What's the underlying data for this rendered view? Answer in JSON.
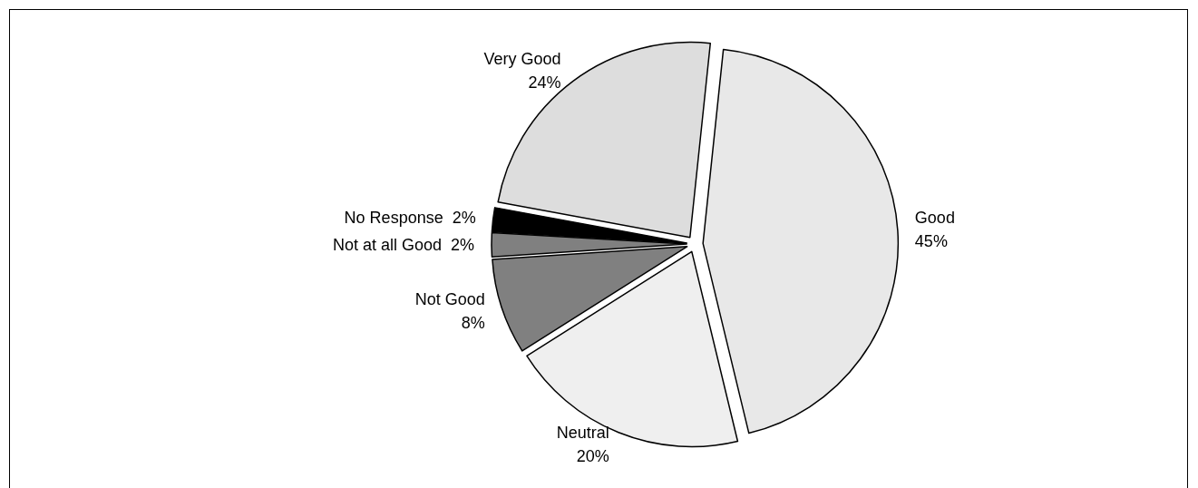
{
  "chart_data": {
    "type": "pie",
    "categories": [
      "Good",
      "Neutral",
      "Not Good",
      "Not at all Good",
      "No Response",
      "Very Good"
    ],
    "values": [
      45,
      20,
      8,
      2,
      2,
      24
    ],
    "value_labels": [
      "45%",
      "20%",
      "8%",
      "2%",
      "2%",
      "24%"
    ],
    "colors": [
      "#e8e8e8",
      "#efefef",
      "#808080",
      "#808080",
      "#000000",
      "#dddddd"
    ]
  }
}
